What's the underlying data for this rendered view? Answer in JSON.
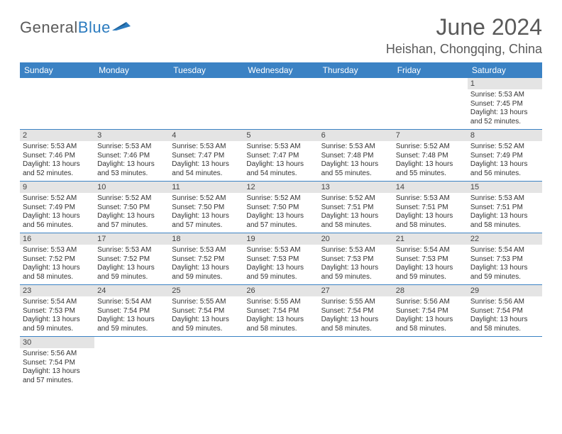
{
  "logo": {
    "text1": "General",
    "text2": "Blue"
  },
  "title": "June 2024",
  "location": "Heishan, Chongqing, China",
  "colors": {
    "header_bg": "#3b82c4",
    "header_text": "#ffffff",
    "daynum_bg": "#e4e4e4",
    "border": "#3b82c4",
    "title_color": "#5a5a5a",
    "logo_blue": "#2b7bbf"
  },
  "weekdays": [
    "Sunday",
    "Monday",
    "Tuesday",
    "Wednesday",
    "Thursday",
    "Friday",
    "Saturday"
  ],
  "weeks": [
    [
      null,
      null,
      null,
      null,
      null,
      null,
      {
        "d": "1",
        "sr": "Sunrise: 5:53 AM",
        "ss": "Sunset: 7:45 PM",
        "dl": "Daylight: 13 hours and 52 minutes."
      }
    ],
    [
      {
        "d": "2",
        "sr": "Sunrise: 5:53 AM",
        "ss": "Sunset: 7:46 PM",
        "dl": "Daylight: 13 hours and 52 minutes."
      },
      {
        "d": "3",
        "sr": "Sunrise: 5:53 AM",
        "ss": "Sunset: 7:46 PM",
        "dl": "Daylight: 13 hours and 53 minutes."
      },
      {
        "d": "4",
        "sr": "Sunrise: 5:53 AM",
        "ss": "Sunset: 7:47 PM",
        "dl": "Daylight: 13 hours and 54 minutes."
      },
      {
        "d": "5",
        "sr": "Sunrise: 5:53 AM",
        "ss": "Sunset: 7:47 PM",
        "dl": "Daylight: 13 hours and 54 minutes."
      },
      {
        "d": "6",
        "sr": "Sunrise: 5:53 AM",
        "ss": "Sunset: 7:48 PM",
        "dl": "Daylight: 13 hours and 55 minutes."
      },
      {
        "d": "7",
        "sr": "Sunrise: 5:52 AM",
        "ss": "Sunset: 7:48 PM",
        "dl": "Daylight: 13 hours and 55 minutes."
      },
      {
        "d": "8",
        "sr": "Sunrise: 5:52 AM",
        "ss": "Sunset: 7:49 PM",
        "dl": "Daylight: 13 hours and 56 minutes."
      }
    ],
    [
      {
        "d": "9",
        "sr": "Sunrise: 5:52 AM",
        "ss": "Sunset: 7:49 PM",
        "dl": "Daylight: 13 hours and 56 minutes."
      },
      {
        "d": "10",
        "sr": "Sunrise: 5:52 AM",
        "ss": "Sunset: 7:50 PM",
        "dl": "Daylight: 13 hours and 57 minutes."
      },
      {
        "d": "11",
        "sr": "Sunrise: 5:52 AM",
        "ss": "Sunset: 7:50 PM",
        "dl": "Daylight: 13 hours and 57 minutes."
      },
      {
        "d": "12",
        "sr": "Sunrise: 5:52 AM",
        "ss": "Sunset: 7:50 PM",
        "dl": "Daylight: 13 hours and 57 minutes."
      },
      {
        "d": "13",
        "sr": "Sunrise: 5:52 AM",
        "ss": "Sunset: 7:51 PM",
        "dl": "Daylight: 13 hours and 58 minutes."
      },
      {
        "d": "14",
        "sr": "Sunrise: 5:53 AM",
        "ss": "Sunset: 7:51 PM",
        "dl": "Daylight: 13 hours and 58 minutes."
      },
      {
        "d": "15",
        "sr": "Sunrise: 5:53 AM",
        "ss": "Sunset: 7:51 PM",
        "dl": "Daylight: 13 hours and 58 minutes."
      }
    ],
    [
      {
        "d": "16",
        "sr": "Sunrise: 5:53 AM",
        "ss": "Sunset: 7:52 PM",
        "dl": "Daylight: 13 hours and 58 minutes."
      },
      {
        "d": "17",
        "sr": "Sunrise: 5:53 AM",
        "ss": "Sunset: 7:52 PM",
        "dl": "Daylight: 13 hours and 59 minutes."
      },
      {
        "d": "18",
        "sr": "Sunrise: 5:53 AM",
        "ss": "Sunset: 7:52 PM",
        "dl": "Daylight: 13 hours and 59 minutes."
      },
      {
        "d": "19",
        "sr": "Sunrise: 5:53 AM",
        "ss": "Sunset: 7:53 PM",
        "dl": "Daylight: 13 hours and 59 minutes."
      },
      {
        "d": "20",
        "sr": "Sunrise: 5:53 AM",
        "ss": "Sunset: 7:53 PM",
        "dl": "Daylight: 13 hours and 59 minutes."
      },
      {
        "d": "21",
        "sr": "Sunrise: 5:54 AM",
        "ss": "Sunset: 7:53 PM",
        "dl": "Daylight: 13 hours and 59 minutes."
      },
      {
        "d": "22",
        "sr": "Sunrise: 5:54 AM",
        "ss": "Sunset: 7:53 PM",
        "dl": "Daylight: 13 hours and 59 minutes."
      }
    ],
    [
      {
        "d": "23",
        "sr": "Sunrise: 5:54 AM",
        "ss": "Sunset: 7:53 PM",
        "dl": "Daylight: 13 hours and 59 minutes."
      },
      {
        "d": "24",
        "sr": "Sunrise: 5:54 AM",
        "ss": "Sunset: 7:54 PM",
        "dl": "Daylight: 13 hours and 59 minutes."
      },
      {
        "d": "25",
        "sr": "Sunrise: 5:55 AM",
        "ss": "Sunset: 7:54 PM",
        "dl": "Daylight: 13 hours and 59 minutes."
      },
      {
        "d": "26",
        "sr": "Sunrise: 5:55 AM",
        "ss": "Sunset: 7:54 PM",
        "dl": "Daylight: 13 hours and 58 minutes."
      },
      {
        "d": "27",
        "sr": "Sunrise: 5:55 AM",
        "ss": "Sunset: 7:54 PM",
        "dl": "Daylight: 13 hours and 58 minutes."
      },
      {
        "d": "28",
        "sr": "Sunrise: 5:56 AM",
        "ss": "Sunset: 7:54 PM",
        "dl": "Daylight: 13 hours and 58 minutes."
      },
      {
        "d": "29",
        "sr": "Sunrise: 5:56 AM",
        "ss": "Sunset: 7:54 PM",
        "dl": "Daylight: 13 hours and 58 minutes."
      }
    ],
    [
      {
        "d": "30",
        "sr": "Sunrise: 5:56 AM",
        "ss": "Sunset: 7:54 PM",
        "dl": "Daylight: 13 hours and 57 minutes."
      },
      null,
      null,
      null,
      null,
      null,
      null
    ]
  ]
}
